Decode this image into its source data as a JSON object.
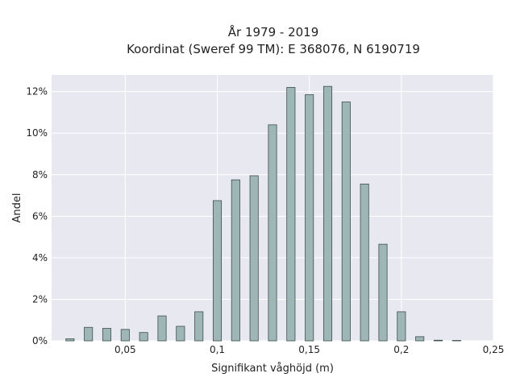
{
  "chart_data": {
    "type": "bar",
    "title": "År 1979 - 2019",
    "subtitle": "Koordinat (Sweref 99 TM): E 368076, N 6190719",
    "xlabel": "Signifikant våghöjd (m)",
    "ylabel": "Andel",
    "xlim": [
      0.01,
      0.25
    ],
    "ylim": [
      0,
      12.8
    ],
    "x_ticks": [
      0.05,
      0.1,
      0.15,
      0.2,
      0.25
    ],
    "x_tick_labels": [
      "0,05",
      "0,1",
      "0,15",
      "0,2",
      "0,25"
    ],
    "y_ticks": [
      0,
      2,
      4,
      6,
      8,
      10,
      12
    ],
    "y_tick_labels": [
      "0%",
      "2%",
      "4%",
      "6%",
      "8%",
      "10%",
      "12%"
    ],
    "grid": true,
    "bar_width": 0.0045,
    "x": [
      0.02,
      0.03,
      0.04,
      0.05,
      0.06,
      0.07,
      0.08,
      0.09,
      0.1,
      0.11,
      0.12,
      0.13,
      0.14,
      0.15,
      0.16,
      0.17,
      0.18,
      0.19,
      0.2,
      0.21,
      0.22,
      0.23
    ],
    "values": [
      0.1,
      0.65,
      0.6,
      0.55,
      0.4,
      1.2,
      0.7,
      1.4,
      6.75,
      7.75,
      7.95,
      10.4,
      12.2,
      11.85,
      12.25,
      11.5,
      7.55,
      4.65,
      1.4,
      0.2,
      0.03,
      0.02
    ],
    "colors": {
      "bar_fill": "#9fb6b6",
      "bar_stroke": "#3d4f4f",
      "plot_background": "#e8e8f0",
      "grid": "#ffffff"
    }
  }
}
